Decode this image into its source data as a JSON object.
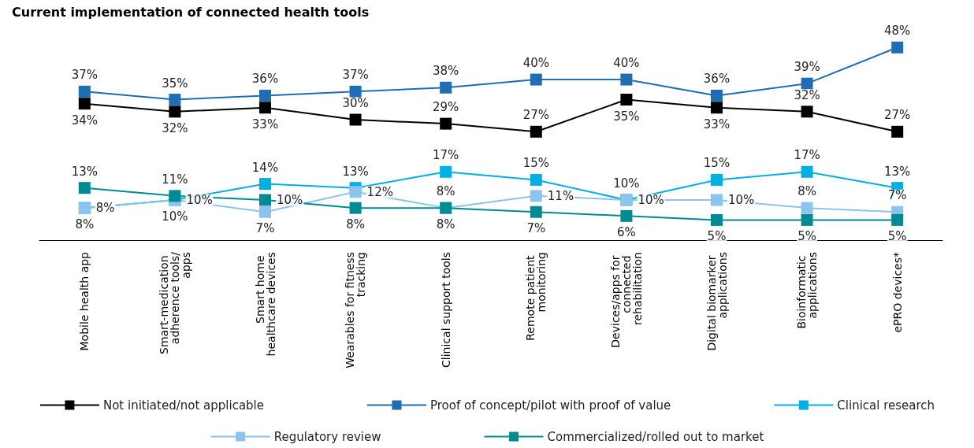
{
  "chart_data": {
    "type": "line",
    "title": "Current implementation of connected health tools",
    "categories": [
      "Mobile health app",
      "Smart-medication adherence tools/apps",
      "Smart home healthcare devices",
      "Wearables for fitness tracking",
      "Clinical support tools",
      "Remote patient monitoring",
      "Devices/apps for connected rehabilitation",
      "Digital biomarker applications",
      "Bioinformatic applications",
      "ePRO devices*"
    ],
    "series": [
      {
        "name": "Not initiated/not applicable",
        "color": "#000000",
        "values": [
          34,
          32,
          33,
          30,
          29,
          27,
          35,
          33,
          32,
          27
        ],
        "value_labels": [
          "34%",
          "32%",
          "33%",
          "30%",
          "29%",
          "27%",
          "35%",
          "33%",
          "32%",
          "27%"
        ]
      },
      {
        "name": "Proof of concept/pilot with proof of value",
        "color": "#1f6db2",
        "values": [
          37,
          35,
          36,
          37,
          38,
          40,
          40,
          36,
          39,
          48
        ],
        "value_labels": [
          "37%",
          "35%",
          "36%",
          "37%",
          "38%",
          "40%",
          "40%",
          "36%",
          "39%",
          "48%"
        ]
      },
      {
        "name": "Clinical research",
        "color": "#00b0e3",
        "values": [
          8,
          10,
          14,
          13,
          17,
          15,
          10,
          15,
          17,
          13
        ],
        "value_labels": [
          "8%",
          "10%",
          "14%",
          "13%",
          "17%",
          "15%",
          "10%",
          "15%",
          "17%",
          "13%"
        ]
      },
      {
        "name": "Regulatory review",
        "color": "#8cc4ed",
        "values": [
          8,
          10,
          7,
          12,
          8,
          11,
          10,
          10,
          8,
          7
        ],
        "value_labels": [
          "8%",
          "10%",
          "7%",
          "12%",
          "8%",
          "11%",
          "10%",
          "10%",
          "8%",
          "7%"
        ]
      },
      {
        "name": "Commercialized/rolled out to market",
        "color": "#008b94",
        "values": [
          13,
          11,
          10,
          8,
          8,
          7,
          6,
          5,
          5,
          5
        ],
        "value_labels": [
          "13%",
          "11%",
          "10%",
          "8%",
          "8%",
          "7%",
          "6%",
          "5%",
          "5%",
          "5%"
        ]
      }
    ],
    "marker": "square",
    "line_style": "solid",
    "grid": false,
    "legend": "bottom"
  }
}
